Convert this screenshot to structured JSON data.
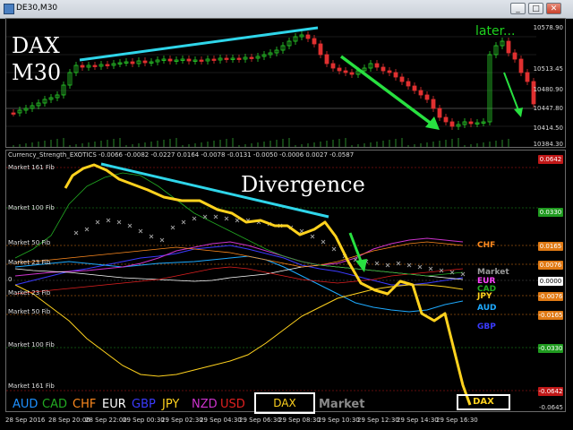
{
  "window": {
    "title": "DE30,M30",
    "buttons": [
      "_",
      "□",
      "✕"
    ]
  },
  "price_chart": {
    "symbol_line1": "DAX",
    "symbol_line2": "M30",
    "annotation_later": "later...",
    "price_labels": [
      "10578.90",
      "10513.45",
      "10480.90",
      "10447.80",
      "10414.50",
      "10384.30"
    ],
    "annotation_colors": {
      "trendline": "#2fd6ea",
      "arrows": "#28e040",
      "bull": "#2bd12b",
      "bear": "#e03030"
    }
  },
  "indicator": {
    "header": "Currency_Strength_EXOTICS -0.0066 -0.0082 -0.0227 0.0164 -0.0078 -0.0131 -0.0050 -0.0006 0.0027 -0.0587",
    "divergence_label": "Divergence",
    "fib_labels": [
      "Market 161 Fib",
      "Market 100 Fib",
      "Market 50 Fib",
      "Market 23 Fib",
      "0",
      "Market 23 Fib",
      "Market 50 Fib",
      "Market 100 Fib",
      "Market 161 Fib"
    ],
    "value_boxes": [
      {
        "text": "0.0642",
        "color": "#c01818"
      },
      {
        "text": "0.0330",
        "color": "#1f9a1f"
      },
      {
        "text": "0.0165",
        "color": "#e07a14"
      },
      {
        "text": "0.0076",
        "color": "#e07a14"
      },
      {
        "text": "0.0000",
        "color": "#ffffff"
      },
      {
        "text": "-0.0076",
        "color": "#e07a14"
      },
      {
        "text": "-0.0165",
        "color": "#e07a14"
      },
      {
        "text": "-0.0330",
        "color": "#1f9a1f"
      },
      {
        "text": "-0.0642",
        "color": "#c01818"
      }
    ],
    "bottom_value": "-0.0645",
    "currency_labels": [
      {
        "name": "CHF",
        "color": "#ff8a1e"
      },
      {
        "name": "Market",
        "color": "#9a9a9a"
      },
      {
        "name": "EUR",
        "color": "#ff44ff"
      },
      {
        "name": "CAD",
        "color": "#22aa22"
      },
      {
        "name": "JPY",
        "color": "#ffd21e"
      },
      {
        "name": "AUD",
        "color": "#1eaaff"
      },
      {
        "name": "GBP",
        "color": "#3b3bff"
      },
      {
        "name": "DAX",
        "color": "#ffd21e"
      }
    ]
  },
  "legend": {
    "items": [
      {
        "name": "AUD",
        "color": "#1e90ff"
      },
      {
        "name": "CAD",
        "color": "#22aa22"
      },
      {
        "name": "CHF",
        "color": "#ff8a1e"
      },
      {
        "name": "EUR",
        "color": "#ffffff"
      },
      {
        "name": "GBP",
        "color": "#3b3bff"
      },
      {
        "name": "JPY",
        "color": "#ffd21e"
      },
      {
        "name": "NZD",
        "color": "#cc33cc"
      },
      {
        "name": "USD",
        "color": "#e02020"
      }
    ],
    "dax": "DAX",
    "market": "Market"
  },
  "time_axis": [
    "28 Sep 2016",
    "28 Sep 20:00",
    "28 Sep 22:00",
    "29 Sep 00:30",
    "29 Sep 02:30",
    "29 Sep 04:30",
    "29 Sep 06:30",
    "29 Sep 08:30",
    "29 Sep 10:30",
    "29 Sep 12:30",
    "29 Sep 14:30",
    "29 Sep 16:30"
  ]
}
